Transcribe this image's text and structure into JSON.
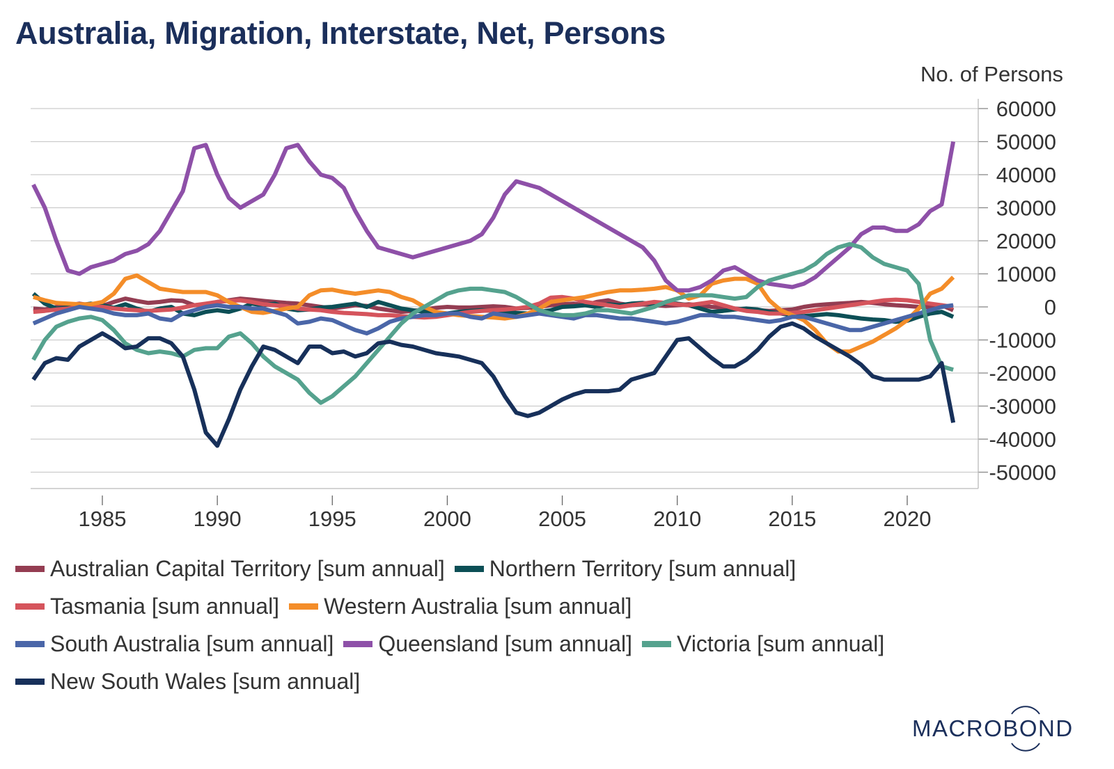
{
  "chart_data": {
    "type": "line",
    "title": "Australia, Migration, Interstate, Net, Persons",
    "ylabel": "No. of Persons",
    "xlabel": "",
    "ylim": [
      -55000,
      65000
    ],
    "xlim": [
      1981.9,
      2023.3
    ],
    "yticks": [
      60000,
      50000,
      40000,
      30000,
      20000,
      10000,
      0,
      -10000,
      -20000,
      -30000,
      -40000,
      -50000
    ],
    "ytick_labels": [
      "60000",
      "50000",
      "40000",
      "30000",
      "20000",
      "10000",
      "0",
      "-10000",
      "-20000",
      "-30000",
      "-40000",
      "-50000"
    ],
    "xticks": [
      1985,
      1990,
      1995,
      2000,
      2005,
      2010,
      2015,
      2020
    ],
    "xtick_labels": [
      "1985",
      "1990",
      "1995",
      "2000",
      "2005",
      "2010",
      "2015",
      "2020"
    ],
    "y_axis_position": "right",
    "grid": true,
    "legend_position": "bottom",
    "x": [
      1982.0,
      1982.5,
      1983.0,
      1983.5,
      1984.0,
      1984.5,
      1985.0,
      1985.5,
      1986.0,
      1986.5,
      1987.0,
      1987.5,
      1988.0,
      1988.5,
      1989.0,
      1989.5,
      1990.0,
      1990.5,
      1991.0,
      1991.5,
      1992.0,
      1992.5,
      1993.0,
      1993.5,
      1994.0,
      1994.5,
      1995.0,
      1995.5,
      1996.0,
      1996.5,
      1997.0,
      1997.5,
      1998.0,
      1998.5,
      1999.0,
      1999.5,
      2000.0,
      2000.5,
      2001.0,
      2001.5,
      2002.0,
      2002.5,
      2003.0,
      2003.5,
      2004.0,
      2004.5,
      2005.0,
      2005.5,
      2006.0,
      2006.5,
      2007.0,
      2007.5,
      2008.0,
      2008.5,
      2009.0,
      2009.5,
      2010.0,
      2010.5,
      2011.0,
      2011.5,
      2012.0,
      2012.5,
      2013.0,
      2013.5,
      2014.0,
      2014.5,
      2015.0,
      2015.5,
      2016.0,
      2016.5,
      2017.0,
      2017.5,
      2018.0,
      2018.5,
      2019.0,
      2019.5,
      2020.0,
      2020.5,
      2021.0,
      2021.5,
      2022.0
    ],
    "series": [
      {
        "name": "Australian Capital Territory [sum annual]",
        "color": "#943d52",
        "values": [
          -500,
          -800,
          0,
          500,
          1000,
          500,
          300,
          1500,
          2500,
          1800,
          1200,
          1500,
          2000,
          1800,
          500,
          800,
          1500,
          2000,
          2500,
          2200,
          1800,
          1500,
          1200,
          1000,
          500,
          0,
          -500,
          0,
          500,
          300,
          -500,
          -1000,
          -1500,
          -1200,
          -800,
          -300,
          0,
          -200,
          -200,
          0,
          200,
          0,
          -500,
          -300,
          0,
          500,
          800,
          1000,
          500,
          1500,
          2000,
          1000,
          500,
          800,
          500,
          300,
          500,
          800,
          500,
          0,
          -200,
          -500,
          -800,
          -1000,
          -1200,
          -1000,
          -800,
          0,
          500,
          800,
          1000,
          1200,
          1500,
          1200,
          800,
          500,
          300,
          0,
          0,
          500,
          -1000
        ]
      },
      {
        "name": "Northern Territory [sum annual]",
        "color": "#0c4f56",
        "values": [
          4000,
          1000,
          -500,
          -200,
          500,
          1000,
          500,
          -300,
          800,
          -500,
          -1500,
          -500,
          0,
          -2000,
          -2500,
          -1500,
          -1000,
          -1500,
          -500,
          1000,
          500,
          1000,
          -500,
          -1000,
          -800,
          -200,
          0,
          500,
          1000,
          0,
          1500,
          500,
          -500,
          -1000,
          -1500,
          -1800,
          -2000,
          -1500,
          -1200,
          -1000,
          -1200,
          -1500,
          -1800,
          -2000,
          -1500,
          -1000,
          0,
          200,
          500,
          0,
          800,
          500,
          1000,
          1200,
          800,
          1000,
          1000,
          500,
          -500,
          -1500,
          -1200,
          -800,
          -500,
          -800,
          -1500,
          -2000,
          -2500,
          -2800,
          -2500,
          -2200,
          -2500,
          -3000,
          -3500,
          -3800,
          -4000,
          -4500,
          -4200,
          -3000,
          -2000,
          -1500,
          -3000
        ]
      },
      {
        "name": "Tasmania [sum annual]",
        "color": "#d5545c",
        "values": [
          -1500,
          -1200,
          -800,
          -500,
          0,
          0,
          0,
          -500,
          -800,
          -1000,
          -1200,
          -1000,
          -800,
          -200,
          500,
          1000,
          1500,
          1800,
          2000,
          1500,
          800,
          500,
          200,
          -500,
          -800,
          -1000,
          -1500,
          -1800,
          -2000,
          -2200,
          -2500,
          -2500,
          -2800,
          -3000,
          -3200,
          -3000,
          -2500,
          -2000,
          -1500,
          -1200,
          -1000,
          -800,
          -500,
          0,
          1000,
          2800,
          3000,
          2500,
          1500,
          1000,
          500,
          0,
          500,
          1000,
          1500,
          1200,
          800,
          500,
          1000,
          1500,
          500,
          -500,
          -1200,
          -1500,
          -2000,
          -2000,
          -1800,
          -1500,
          -1000,
          -500,
          0,
          500,
          1000,
          1500,
          2000,
          2200,
          2000,
          1500,
          1000,
          500,
          0
        ]
      },
      {
        "name": "Western Australia [sum annual]",
        "color": "#f48d29",
        "values": [
          3000,
          2000,
          1200,
          1000,
          800,
          800,
          1500,
          4000,
          8500,
          9500,
          7500,
          5500,
          5000,
          4500,
          4500,
          4500,
          3500,
          1500,
          0,
          -1500,
          -1800,
          -1200,
          -500,
          0,
          3500,
          5000,
          5200,
          4500,
          4000,
          4500,
          5000,
          4500,
          3000,
          2000,
          0,
          -1500,
          -2000,
          -2500,
          -2800,
          -3000,
          -3200,
          -3500,
          -3000,
          -2000,
          -500,
          1500,
          2000,
          2500,
          3000,
          3800,
          4500,
          5000,
          5000,
          5200,
          5500,
          6000,
          5000,
          2500,
          3500,
          7000,
          8000,
          8500,
          8500,
          7000,
          2000,
          -1000,
          -2500,
          -4000,
          -7000,
          -11000,
          -13500,
          -13500,
          -12000,
          -10500,
          -8500,
          -6500,
          -4000,
          -500,
          4000,
          5500,
          9000
        ]
      },
      {
        "name": "South Australia [sum annual]",
        "color": "#4a66a8",
        "values": [
          -5000,
          -3500,
          -2000,
          -1000,
          0,
          -500,
          -1000,
          -2000,
          -2500,
          -2500,
          -2000,
          -3500,
          -4000,
          -2000,
          -1000,
          0,
          500,
          0,
          0,
          -500,
          -500,
          -1500,
          -2500,
          -5000,
          -4500,
          -3500,
          -4000,
          -5500,
          -7000,
          -8000,
          -6500,
          -4500,
          -3500,
          -3000,
          -2500,
          -2500,
          -2000,
          -2000,
          -3000,
          -3500,
          -2000,
          -2500,
          -3000,
          -2500,
          -2000,
          -2500,
          -3000,
          -3500,
          -2500,
          -2500,
          -3000,
          -3500,
          -3500,
          -4000,
          -4500,
          -5000,
          -4500,
          -3500,
          -2500,
          -2500,
          -3000,
          -3000,
          -3500,
          -4000,
          -4500,
          -4000,
          -3000,
          -3000,
          -4000,
          -5000,
          -6000,
          -7000,
          -7000,
          -6000,
          -5000,
          -4000,
          -3000,
          -2000,
          -1000,
          0,
          500
        ]
      },
      {
        "name": "Queensland [sum annual]",
        "color": "#8e50a8",
        "values": [
          37000,
          30000,
          20000,
          11000,
          10000,
          12000,
          13000,
          14000,
          16000,
          17000,
          19000,
          23000,
          29000,
          35000,
          48000,
          49000,
          40000,
          33000,
          30000,
          32000,
          34000,
          40000,
          48000,
          49000,
          44000,
          40000,
          39000,
          36000,
          29000,
          23000,
          18000,
          17000,
          16000,
          15000,
          16000,
          17000,
          18000,
          19000,
          20000,
          22000,
          27000,
          34000,
          38000,
          37000,
          36000,
          34000,
          32000,
          30000,
          28000,
          26000,
          24000,
          22000,
          20000,
          18000,
          14000,
          8000,
          5000,
          5000,
          6000,
          8000,
          11000,
          12000,
          10000,
          8000,
          7000,
          6500,
          6000,
          7000,
          9000,
          12000,
          15000,
          18000,
          22000,
          24000,
          24000,
          23000,
          23000,
          25000,
          29000,
          31000,
          50000
        ]
      },
      {
        "name": "Victoria [sum annual]",
        "color": "#55a28e",
        "values": [
          -16000,
          -10000,
          -6000,
          -4500,
          -3500,
          -3000,
          -4000,
          -7000,
          -11000,
          -13000,
          -14000,
          -13500,
          -14000,
          -15000,
          -13000,
          -12500,
          -12500,
          -9000,
          -8000,
          -11000,
          -15000,
          -18000,
          -20000,
          -22000,
          -26000,
          -29000,
          -27000,
          -24000,
          -21000,
          -17000,
          -13000,
          -9000,
          -5000,
          -2000,
          0,
          2000,
          4000,
          5000,
          5500,
          5500,
          5000,
          4500,
          3000,
          1000,
          -1000,
          -2000,
          -2500,
          -2500,
          -2000,
          -1000,
          -1000,
          -1500,
          -2000,
          -1000,
          0,
          1500,
          2500,
          3500,
          3500,
          3500,
          3000,
          2500,
          3000,
          6000,
          8000,
          9000,
          10000,
          11000,
          13000,
          16000,
          18000,
          19000,
          18000,
          15000,
          13000,
          12000,
          11000,
          7000,
          -10000,
          -18000,
          -19000
        ]
      },
      {
        "name": "New South Wales [sum annual]",
        "color": "#17305a",
        "values": [
          -22000,
          -17000,
          -15500,
          -16000,
          -12000,
          -10000,
          -8000,
          -10000,
          -12500,
          -12000,
          -9500,
          -9500,
          -11000,
          -15000,
          -25000,
          -38000,
          -42000,
          -34000,
          -25000,
          -18000,
          -12000,
          -13000,
          -15000,
          -17000,
          -12000,
          -12000,
          -14000,
          -13500,
          -15000,
          -14000,
          -11000,
          -10500,
          -11500,
          -12000,
          -13000,
          -14000,
          -14500,
          -15000,
          -16000,
          -17000,
          -21000,
          -27000,
          -32000,
          -33000,
          -32000,
          -30000,
          -28000,
          -26500,
          -25500,
          -25500,
          -25500,
          -25000,
          -22000,
          -21000,
          -20000,
          -15000,
          -10000,
          -9500,
          -12500,
          -15500,
          -18000,
          -18000,
          -16000,
          -13000,
          -9000,
          -6000,
          -5000,
          -6500,
          -9000,
          -11000,
          -13000,
          -15000,
          -17500,
          -21000,
          -22000,
          -22000,
          -22000,
          -22000,
          -21000,
          -17000,
          -35000
        ]
      }
    ]
  },
  "branding": {
    "logo_text": "MACROBOND"
  }
}
